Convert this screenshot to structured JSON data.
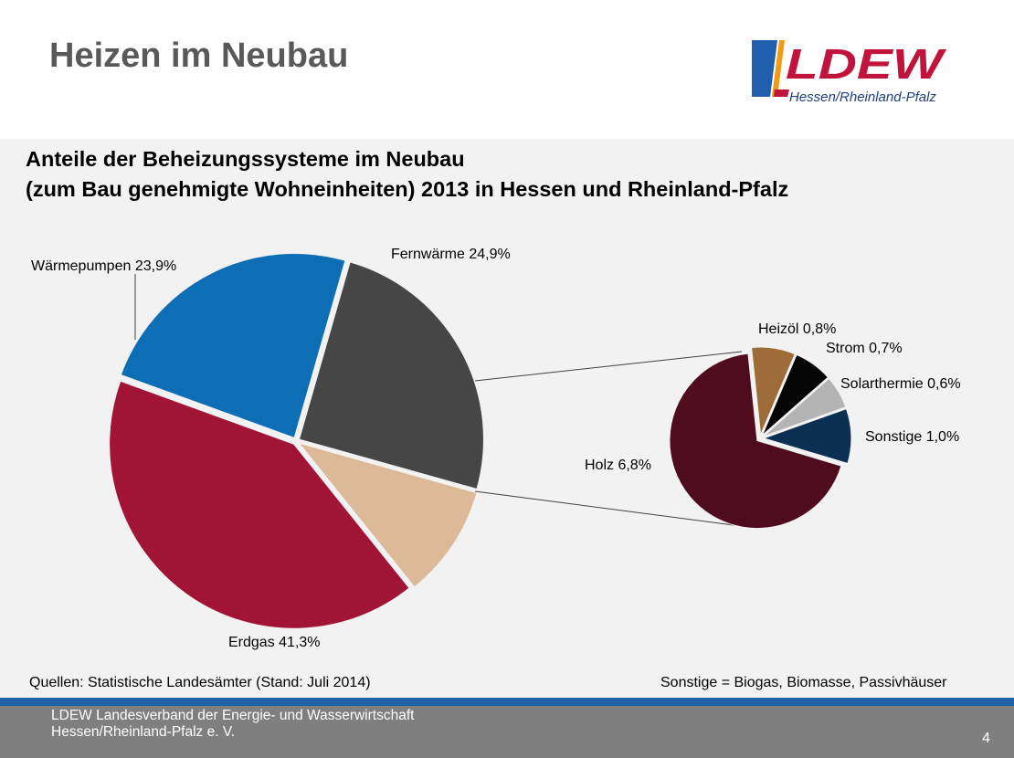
{
  "slide": {
    "title": "Heizen im Neubau",
    "page_number": "4"
  },
  "logo": {
    "name": "LDEW",
    "subtitle": "Hessen/Rheinland-Pfalz",
    "colors": {
      "blue": "#1f5fae",
      "red": "#c0143c",
      "orange": "#f09a16"
    }
  },
  "chart_data": {
    "type": "pie",
    "subtype": "pie-of-pie",
    "title_line1": "Anteile der Beheizungssysteme im Neubau",
    "title_line2": "(zum Bau genehmigte Wohneinheiten) 2013 in Hessen und Rheinland-Pfalz",
    "main": [
      {
        "label": "Fernwärme 24,9%",
        "value": 24.9,
        "color": "#464646"
      },
      {
        "label": "",
        "value": 9.9,
        "color": "#dcb998",
        "aggregate": true
      },
      {
        "label": "Erdgas 41,3%",
        "value": 41.3,
        "color": "#a11436"
      },
      {
        "label": "Wärmepumpen  23,9%",
        "value": 23.9,
        "color": "#0d6db5"
      }
    ],
    "detail": [
      {
        "label": "Heizöl 0,8%",
        "value": 0.8,
        "color": "#9e6c39"
      },
      {
        "label": "Strom 0,7%",
        "value": 0.7,
        "color": "#050505"
      },
      {
        "label": "Solarthermie 0,6%",
        "value": 0.6,
        "color": "#b4b4b4"
      },
      {
        "label": "Sonstige 1,0%",
        "value": 1.0,
        "color": "#0c2f54"
      },
      {
        "label": "Holz 6,8%",
        "value": 6.8,
        "color": "#4f0c1e"
      }
    ]
  },
  "footer": {
    "source": "Quellen:  Statistische Landesämter (Stand: Juli 2014)",
    "note": "Sonstige = Biogas, Biomasse, Passivhäuser",
    "org_line1": "LDEW Landesverband der Energie- und Wasserwirtschaft",
    "org_line2": "Hessen/Rheinland-Pfalz  e. V."
  }
}
